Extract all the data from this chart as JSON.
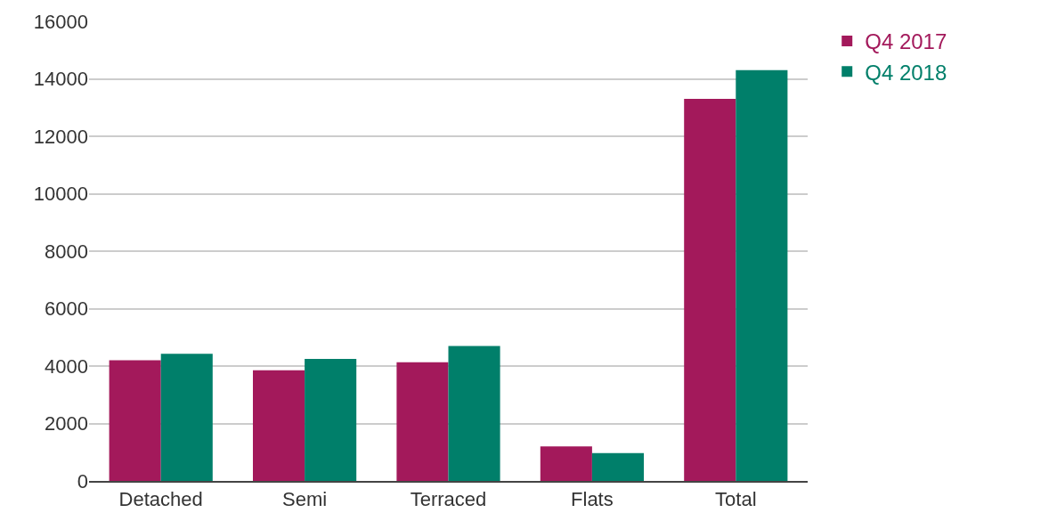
{
  "chart_data": {
    "type": "bar",
    "categories": [
      "Detached",
      "Semi",
      "Terraced",
      "Flats",
      "Total"
    ],
    "series": [
      {
        "name": "Q4 2017",
        "color": "#a3195b",
        "values": [
          4200,
          3850,
          4130,
          1200,
          13300
        ]
      },
      {
        "name": "Q4 2018",
        "color": "#007f6a",
        "values": [
          4430,
          4250,
          4700,
          970,
          14300
        ]
      }
    ],
    "ylim": [
      0,
      16000
    ],
    "yticks": [
      0,
      2000,
      4000,
      6000,
      8000,
      10000,
      12000,
      14000,
      16000
    ],
    "grid": "y",
    "legend": "top right"
  }
}
